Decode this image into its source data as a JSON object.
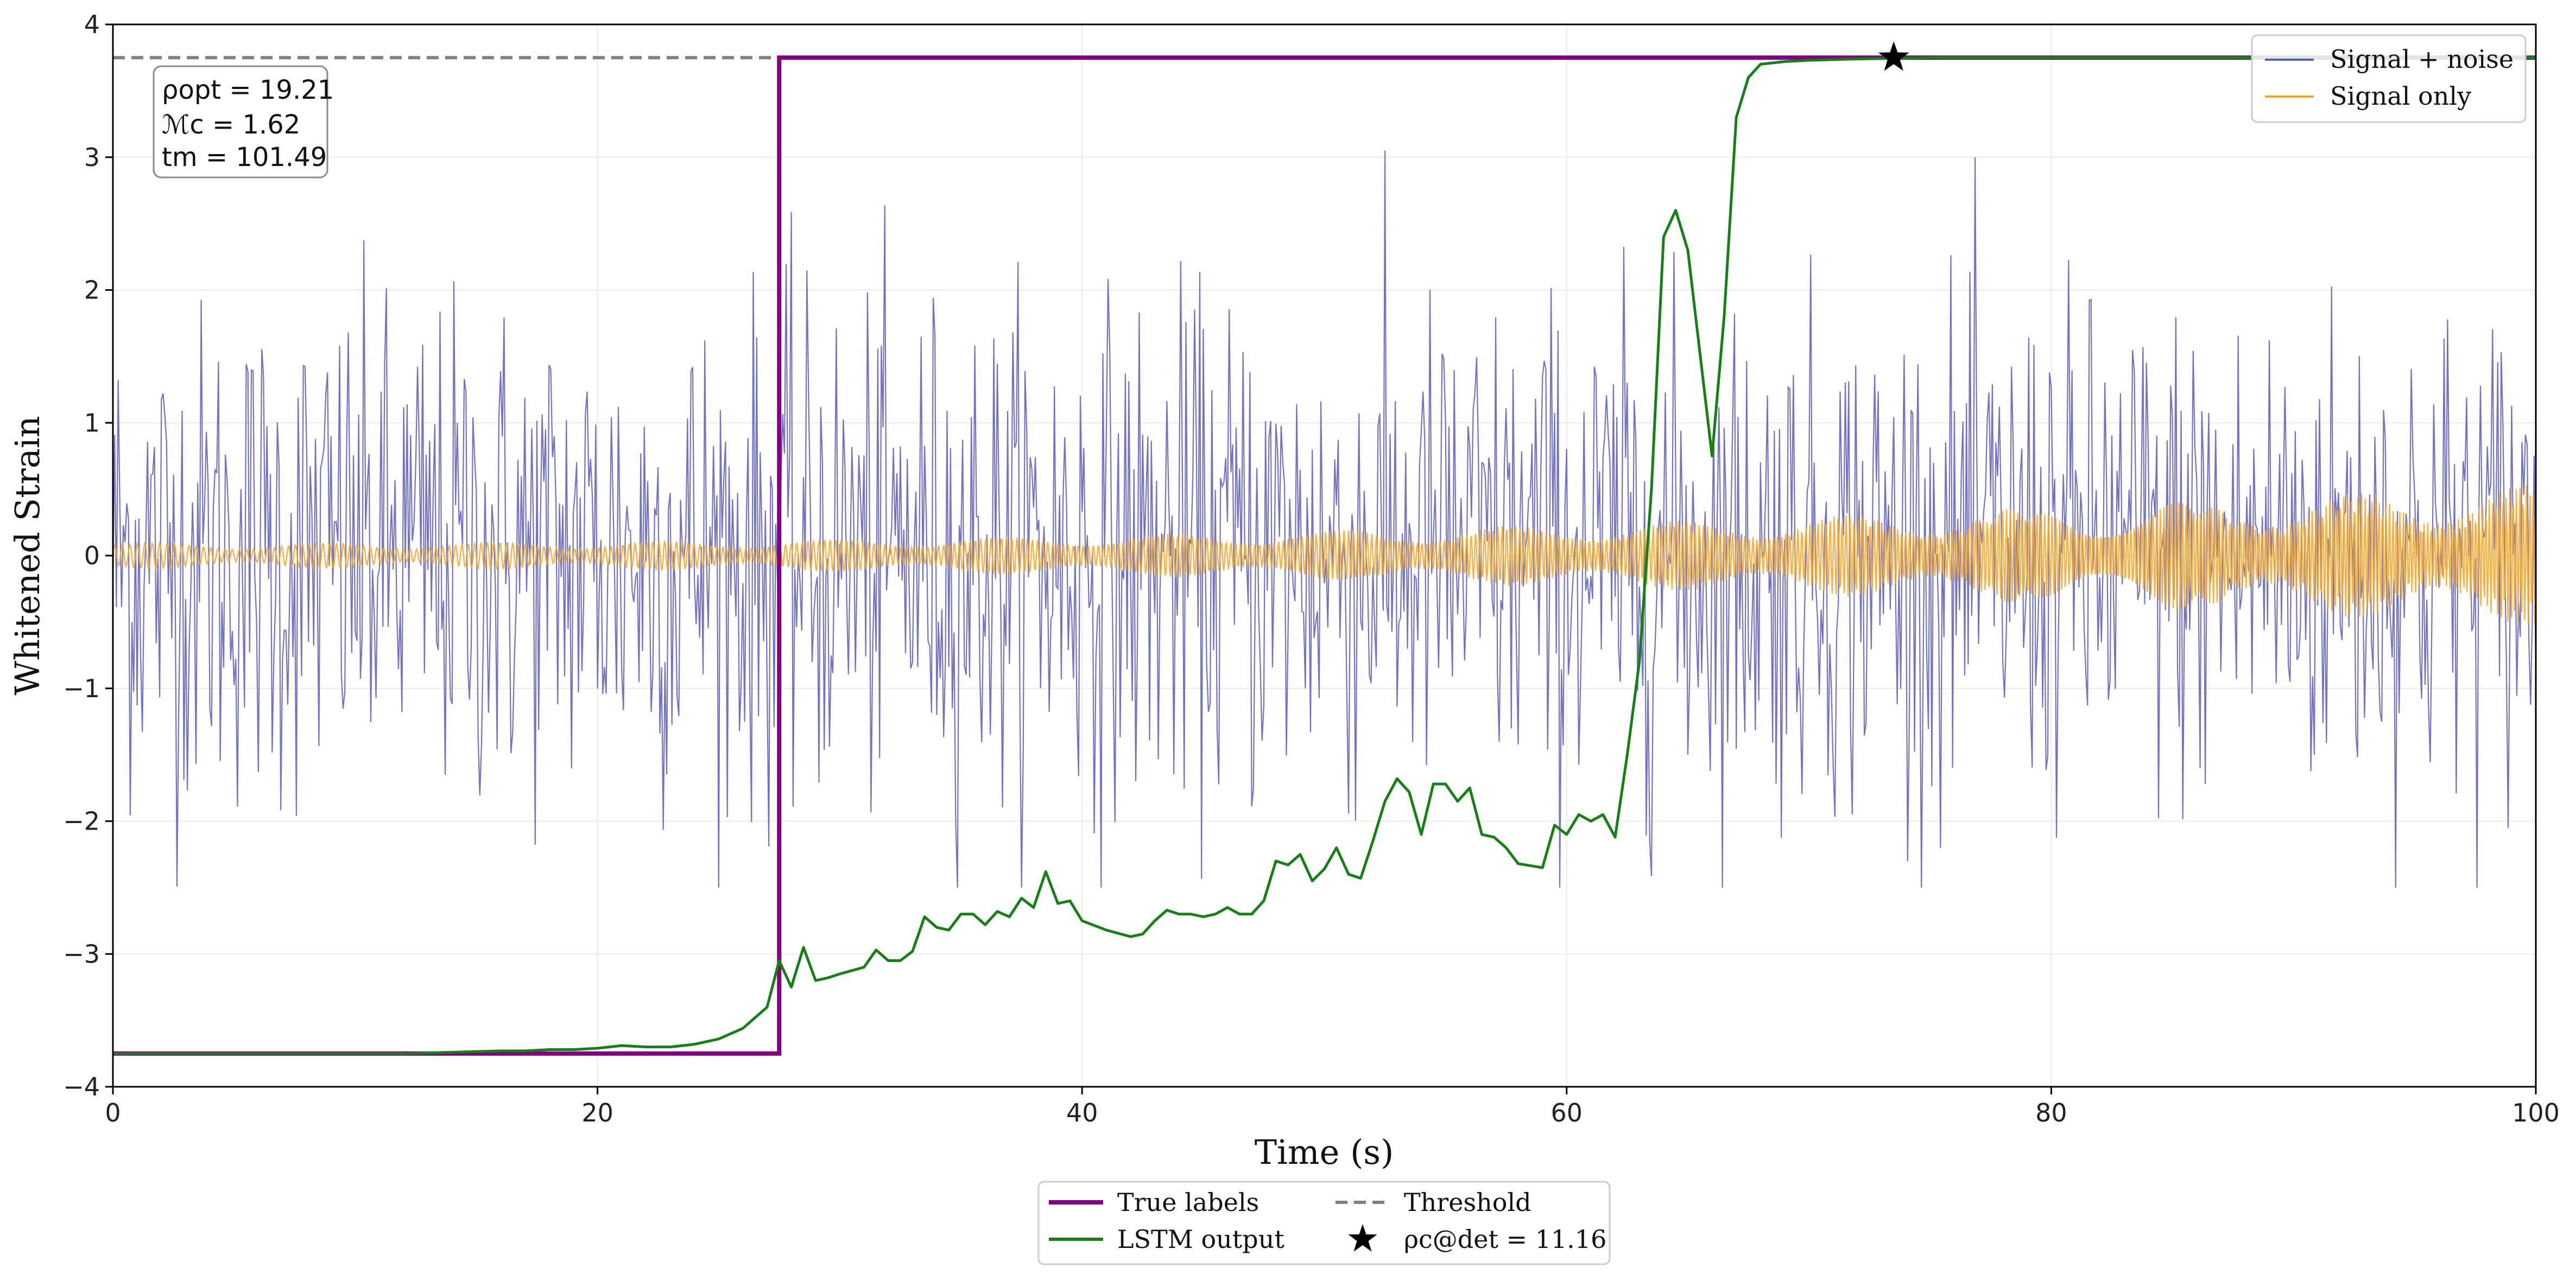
{
  "chart_data": {
    "type": "line",
    "xlabel": "Time (s)",
    "ylabel": "Whitened Strain",
    "xlim": [
      0,
      100
    ],
    "ylim": [
      -4,
      4
    ],
    "x_ticks": [
      0,
      20,
      40,
      60,
      80,
      100
    ],
    "y_ticks": [
      -4,
      -3,
      -2,
      -1,
      0,
      1,
      2,
      3,
      4
    ],
    "x_tick_labels": [
      "0",
      "20",
      "40",
      "60",
      "80",
      "100"
    ],
    "y_tick_labels": [
      "−4",
      "−3",
      "−2",
      "−1",
      "0",
      "1",
      "2",
      "3",
      "4"
    ],
    "grid": true,
    "annotation": {
      "rho_opt": "ρopt = 19.21",
      "mass": "ℳc = 1.62",
      "t_merge": "tm = 101.49"
    },
    "series": [
      {
        "name": "Signal + noise",
        "kind": "noise",
        "color": "#5b5bb8",
        "amplitude_envelope": 2.5,
        "samples": 1400,
        "x_range": [
          0,
          100
        ]
      },
      {
        "name": "Signal only",
        "kind": "chirp",
        "color": "#f5a623",
        "amplitude_start": 0.07,
        "amplitude_end": 0.4,
        "x_range": [
          0,
          100
        ]
      },
      {
        "name": "True labels",
        "kind": "step",
        "color": "#800080",
        "x": [
          0,
          27.5,
          27.5,
          100
        ],
        "y": [
          -3.75,
          -3.75,
          3.75,
          3.75
        ]
      },
      {
        "name": "LSTM output",
        "kind": "line",
        "color": "#168016",
        "x": [
          0,
          5,
          10,
          12,
          14,
          16,
          17,
          18,
          19,
          20,
          21,
          22,
          23,
          24,
          25,
          26,
          27,
          27.5,
          28,
          28.5,
          29,
          29.5,
          30,
          31,
          31.5,
          32,
          32.5,
          33,
          33.5,
          34,
          34.5,
          35,
          35.5,
          36,
          36.5,
          37,
          37.5,
          38,
          38.5,
          39,
          39.5,
          40,
          41,
          42,
          42.5,
          43,
          43.5,
          44,
          44.5,
          45,
          45.5,
          46,
          46.5,
          47,
          47.5,
          48,
          48.5,
          49,
          49.5,
          50,
          50.5,
          51,
          51.5,
          52,
          52.5,
          53,
          53.5,
          54,
          54.5,
          55,
          55.5,
          56,
          56.5,
          57,
          57.5,
          58,
          59,
          59.5,
          60,
          60.5,
          61,
          61.5,
          62,
          62.5,
          63,
          63.5,
          64,
          64.5,
          65,
          66,
          66.5,
          67,
          67.5,
          68,
          69,
          70,
          72,
          75,
          80,
          90,
          100
        ],
        "y": [
          -3.75,
          -3.75,
          -3.75,
          -3.75,
          -3.74,
          -3.73,
          -3.73,
          -3.72,
          -3.72,
          -3.71,
          -3.69,
          -3.7,
          -3.7,
          -3.68,
          -3.64,
          -3.56,
          -3.4,
          -3.05,
          -3.25,
          -2.95,
          -3.2,
          -3.18,
          -3.15,
          -3.1,
          -2.97,
          -3.05,
          -3.05,
          -2.98,
          -2.72,
          -2.8,
          -2.82,
          -2.7,
          -2.7,
          -2.78,
          -2.68,
          -2.72,
          -2.58,
          -2.65,
          -2.38,
          -2.62,
          -2.6,
          -2.75,
          -2.82,
          -2.87,
          -2.85,
          -2.75,
          -2.67,
          -2.7,
          -2.7,
          -2.72,
          -2.7,
          -2.65,
          -2.7,
          -2.7,
          -2.6,
          -2.3,
          -2.33,
          -2.25,
          -2.45,
          -2.36,
          -2.2,
          -2.4,
          -2.43,
          -2.15,
          -1.85,
          -1.68,
          -1.78,
          -2.1,
          -1.72,
          -1.72,
          -1.85,
          -1.75,
          -2.1,
          -2.12,
          -2.2,
          -2.32,
          -2.35,
          -2.03,
          -2.1,
          -1.95,
          -2.0,
          -1.95,
          -2.12,
          -1.5,
          -0.8,
          0.5,
          2.4,
          2.6,
          2.3,
          0.75,
          1.8,
          3.3,
          3.6,
          3.7,
          3.72,
          3.73,
          3.74,
          3.75,
          3.75,
          3.75,
          3.75
        ]
      },
      {
        "name": "Threshold",
        "kind": "hline",
        "color": "#808080",
        "y": 3.75
      },
      {
        "name": "ρc@det = 11.16",
        "kind": "marker",
        "color": "#000000",
        "x": 73.5,
        "y": 3.75
      }
    ],
    "legend_upper": [
      {
        "label": "Signal + noise",
        "color": "#5b5bb8"
      },
      {
        "label": "Signal only",
        "color": "#f5a623"
      }
    ],
    "legend_lower": [
      {
        "label": "True labels",
        "color": "#800080"
      },
      {
        "label": "Threshold",
        "color": "#808080"
      },
      {
        "label": "LSTM output",
        "color": "#168016"
      },
      {
        "label": "ρc@det = 11.16",
        "color": "#000000"
      }
    ]
  }
}
